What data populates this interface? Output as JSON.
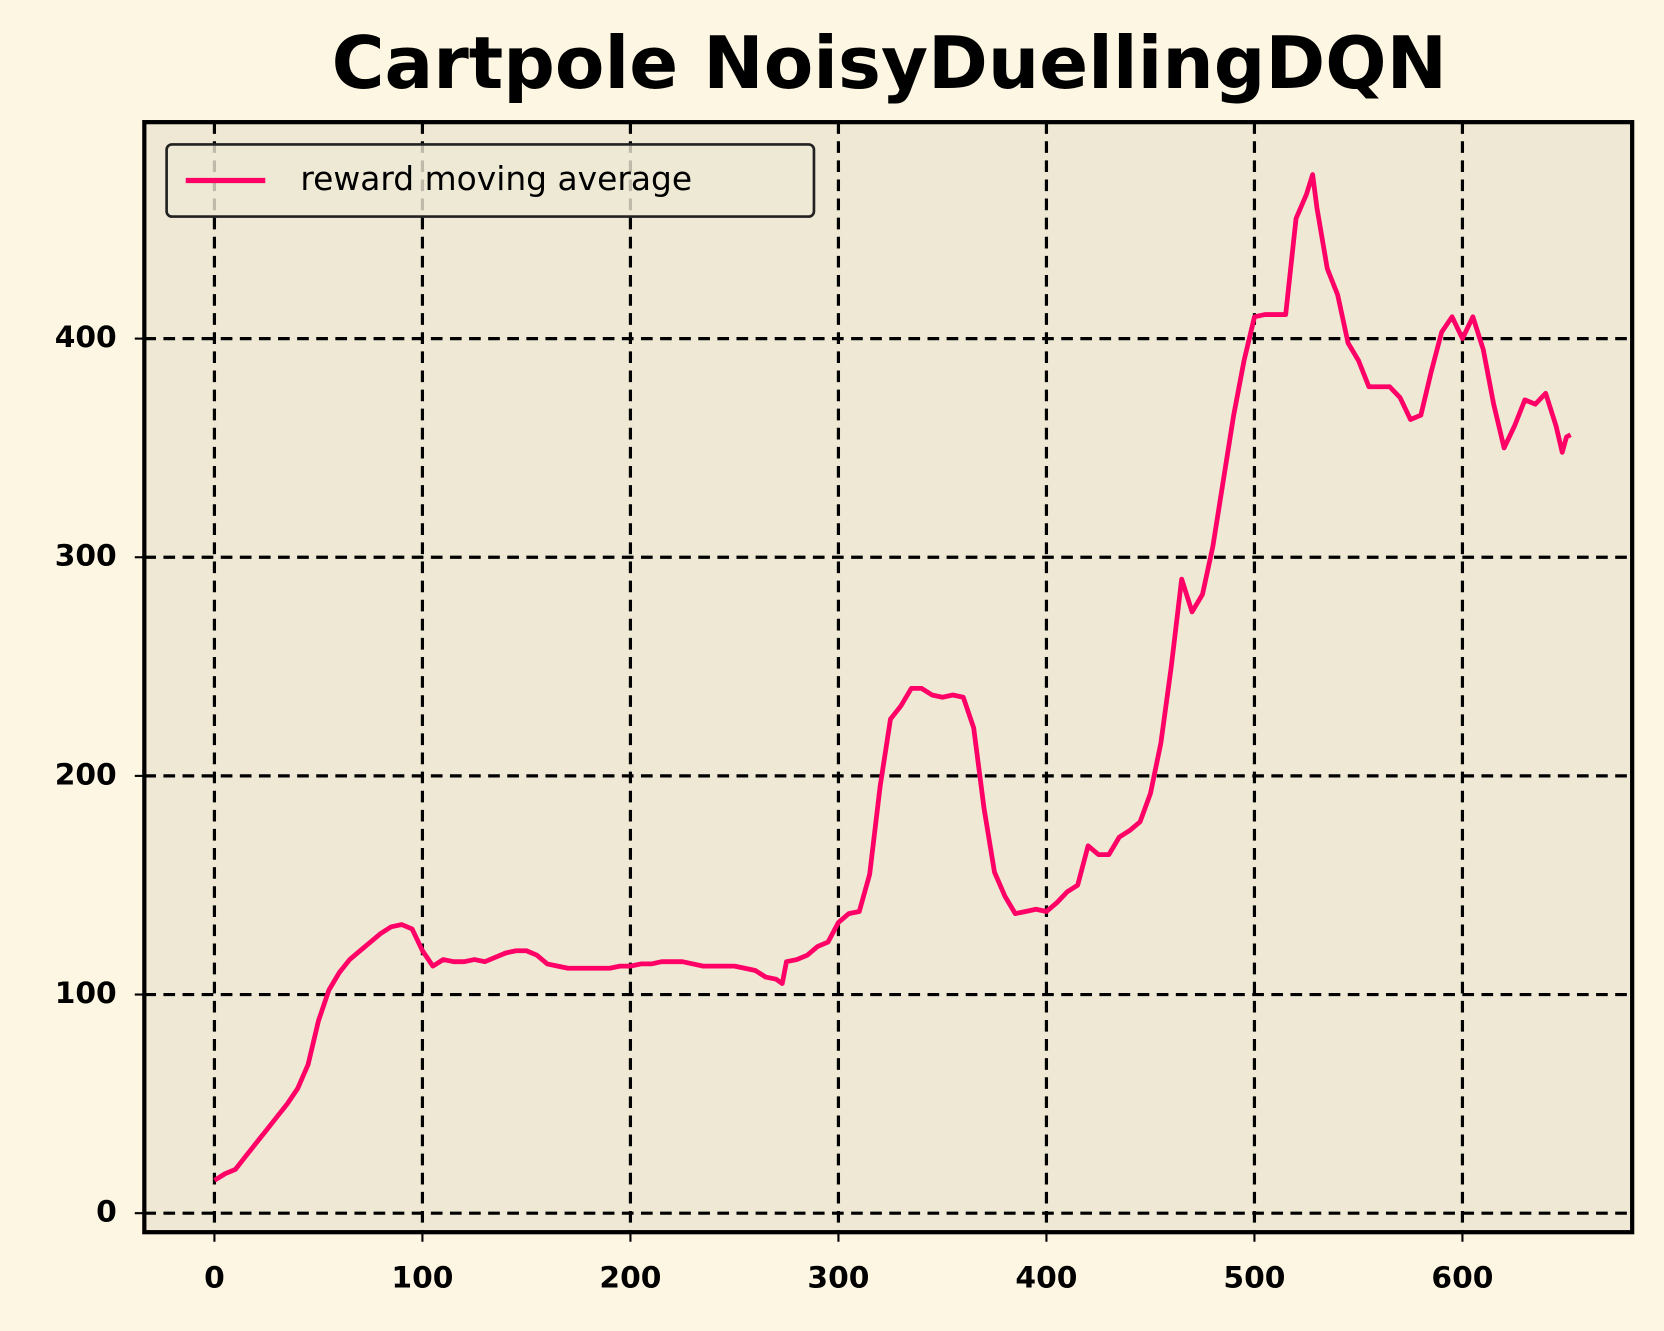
{
  "chart_data": {
    "type": "line",
    "title": "Cartpole NoisyDuellingDQN",
    "x": [
      0,
      5,
      10,
      15,
      20,
      25,
      30,
      35,
      40,
      45,
      50,
      55,
      60,
      65,
      70,
      75,
      80,
      85,
      90,
      95,
      100,
      105,
      110,
      115,
      120,
      125,
      130,
      135,
      140,
      145,
      150,
      155,
      160,
      165,
      170,
      175,
      180,
      185,
      190,
      195,
      200,
      205,
      210,
      215,
      220,
      225,
      230,
      235,
      240,
      245,
      250,
      255,
      260,
      265,
      270,
      273,
      275,
      280,
      285,
      290,
      295,
      300,
      305,
      310,
      315,
      320,
      325,
      330,
      335,
      340,
      345,
      350,
      355,
      360,
      365,
      370,
      375,
      380,
      385,
      390,
      395,
      400,
      405,
      410,
      415,
      420,
      425,
      430,
      435,
      440,
      445,
      450,
      455,
      460,
      465,
      470,
      475,
      480,
      485,
      490,
      495,
      500,
      505,
      510,
      515,
      520,
      525,
      528,
      530,
      535,
      540,
      545,
      550,
      555,
      560,
      565,
      570,
      575,
      580,
      585,
      590,
      595,
      600,
      605,
      610,
      615,
      620,
      625,
      630,
      635,
      640,
      645,
      648,
      650,
      652
    ],
    "series": [
      {
        "name": "reward moving average",
        "color": "#ff0066",
        "values": [
          15,
          18,
          20,
          26,
          32,
          38,
          44,
          50,
          57,
          68,
          88,
          102,
          110,
          116,
          120,
          124,
          128,
          131,
          132,
          130,
          120,
          113,
          116,
          115,
          115,
          116,
          115,
          117,
          119,
          120,
          120,
          118,
          114,
          113,
          112,
          112,
          112,
          112,
          112,
          113,
          113,
          114,
          114,
          115,
          115,
          115,
          114,
          113,
          113,
          113,
          113,
          112,
          111,
          108,
          107,
          105,
          115,
          116,
          118,
          122,
          124,
          133,
          137,
          138,
          155,
          195,
          226,
          232,
          240,
          240,
          237,
          236,
          237,
          236,
          222,
          185,
          156,
          145,
          137,
          138,
          139,
          138,
          142,
          147,
          150,
          168,
          164,
          164,
          172,
          175,
          179,
          192,
          215,
          250,
          290,
          275,
          283,
          305,
          335,
          365,
          390,
          410,
          411,
          411,
          411,
          455,
          466,
          475,
          460,
          432,
          420,
          398,
          390,
          378,
          378,
          378,
          373,
          363,
          365,
          385,
          403,
          410,
          400,
          410,
          395,
          370,
          350,
          360,
          372,
          370,
          375,
          360,
          348,
          355,
          356
        ]
      }
    ],
    "xlim": [
      -33.7,
      681.6
    ],
    "ylim": [
      -8.7,
      499
    ],
    "xticks": [
      0,
      100,
      200,
      300,
      400,
      500,
      600
    ],
    "yticks": [
      0,
      100,
      200,
      300,
      400
    ],
    "grid": true,
    "legend": "upper left"
  }
}
